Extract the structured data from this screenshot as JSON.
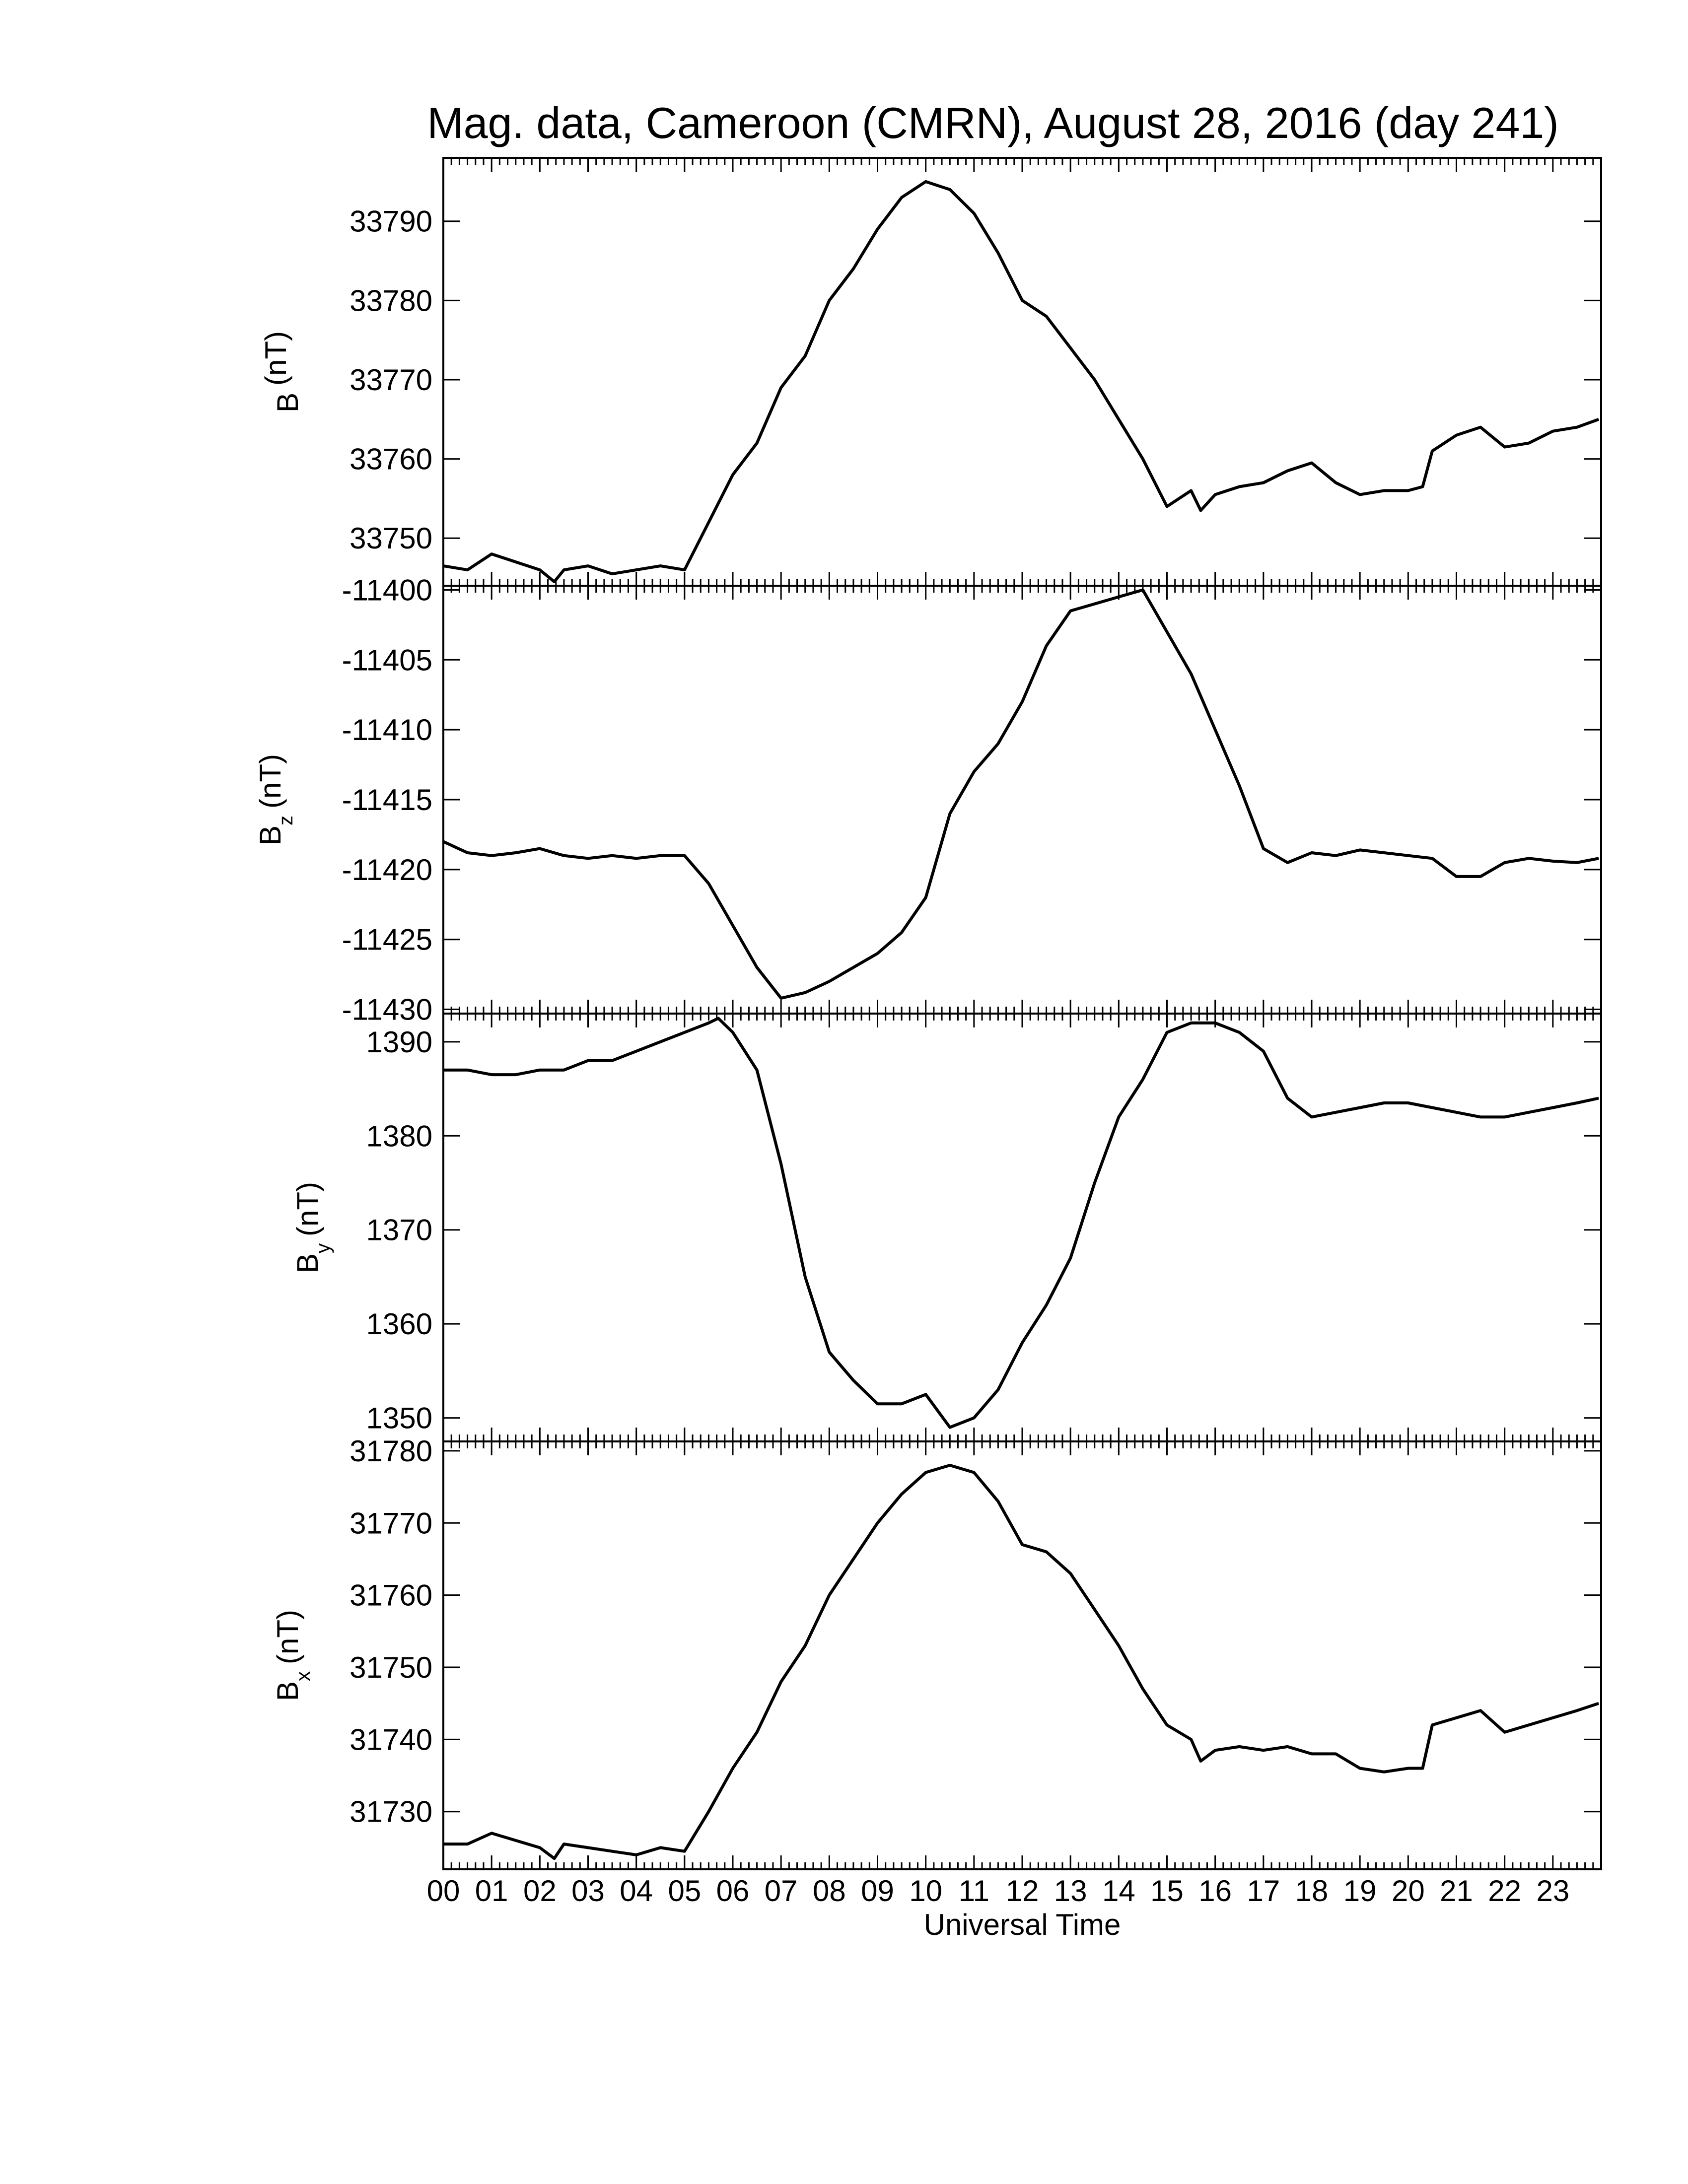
{
  "chart_data": {
    "title": "Mag. data, Cameroon (CMRN), August 28, 2016 (day 241)",
    "type": "line",
    "xlabel": "Universal Time",
    "xlim": [
      0,
      24
    ],
    "x_tick_labels": [
      "00",
      "01",
      "02",
      "03",
      "04",
      "05",
      "06",
      "07",
      "08",
      "09",
      "10",
      "11",
      "12",
      "13",
      "14",
      "15",
      "16",
      "17",
      "18",
      "19",
      "20",
      "21",
      "22",
      "23"
    ],
    "panels": [
      {
        "id": "B",
        "ylabel_main": "B",
        "ylabel_sub": "",
        "ylabel_unit": "(nT)",
        "ylim": [
          33744,
          33798
        ],
        "yticks": [
          33750,
          33760,
          33770,
          33780,
          33790
        ],
        "series": [
          {
            "x": [
              0.0,
              0.5,
              1.0,
              1.5,
              2.0,
              2.3,
              2.5,
              3.0,
              3.5,
              4.0,
              4.5,
              5.0,
              5.5,
              6.0,
              6.5,
              7.0,
              7.5,
              8.0,
              8.5,
              9.0,
              9.5,
              10.0,
              10.5,
              11.0,
              11.5,
              12.0,
              12.5,
              13.0,
              13.5,
              14.0,
              14.5,
              15.0,
              15.5,
              15.7,
              16.0,
              16.5,
              17.0,
              17.5,
              18.0,
              18.5,
              19.0,
              19.5,
              20.0,
              20.3,
              20.5,
              21.0,
              21.5,
              22.0,
              22.5,
              23.0,
              23.5,
              23.95
            ],
            "y": [
              33746.5,
              33746,
              33748,
              33747,
              33746,
              33744.5,
              33746,
              33746.5,
              33745.5,
              33746,
              33746.5,
              33746,
              33752,
              33758,
              33762,
              33769,
              33773,
              33780,
              33784,
              33789,
              33793,
              33795,
              33794,
              33791,
              33786,
              33780,
              33778,
              33774,
              33770,
              33765,
              33760,
              33754,
              33756,
              33753.5,
              33755.5,
              33756.5,
              33757,
              33758.5,
              33759.5,
              33757,
              33755.5,
              33756,
              33756,
              33756.5,
              33761,
              33763,
              33764,
              33761.5,
              33762,
              33763.5,
              33764,
              33765
            ]
          }
        ]
      },
      {
        "id": "Bz",
        "ylabel_main": "B",
        "ylabel_sub": "z",
        "ylabel_unit": "(nT)",
        "ylim": [
          -11430.3,
          -11399.7
        ],
        "yticks": [
          -11400,
          -11405,
          -11410,
          -11415,
          -11420,
          -11425,
          -11430
        ],
        "series": [
          {
            "x": [
              0.0,
              0.5,
              1.0,
              1.5,
              2.0,
              2.5,
              3.0,
              3.5,
              4.0,
              4.5,
              5.0,
              5.5,
              6.0,
              6.5,
              7.0,
              7.5,
              8.0,
              8.5,
              9.0,
              9.5,
              10.0,
              10.5,
              11.0,
              11.5,
              12.0,
              12.5,
              13.0,
              13.5,
              14.0,
              14.5,
              15.0,
              15.5,
              16.0,
              16.5,
              17.0,
              17.5,
              18.0,
              18.5,
              19.0,
              19.5,
              20.0,
              20.5,
              21.0,
              21.5,
              22.0,
              22.5,
              23.0,
              23.5,
              23.95
            ],
            "y": [
              -11418,
              -11418.8,
              -11419,
              -11418.8,
              -11418.5,
              -11419,
              -11419.2,
              -11419,
              -11419.2,
              -11419,
              -11419,
              -11421,
              -11424,
              -11427,
              -11429.2,
              -11428.8,
              -11428,
              -11427,
              -11426,
              -11424.5,
              -11422,
              -11416,
              -11413,
              -11411,
              -11408,
              -11404,
              -11401.5,
              -11401,
              -11400.5,
              -11400,
              -11403,
              -11406,
              -11410,
              -11414,
              -11418.5,
              -11419.5,
              -11418.8,
              -11419,
              -11418.6,
              -11418.8,
              -11419,
              -11419.2,
              -11420.5,
              -11420.5,
              -11419.5,
              -11419.2,
              -11419.4,
              -11419.5,
              -11419.2
            ]
          }
        ]
      },
      {
        "id": "By",
        "ylabel_main": "B",
        "ylabel_sub": "y",
        "ylabel_unit": "(nT)",
        "ylim": [
          1347.5,
          1393
        ],
        "yticks": [
          1350,
          1360,
          1370,
          1380,
          1390
        ],
        "series": [
          {
            "x": [
              0.0,
              0.5,
              1.0,
              1.5,
              2.0,
              2.5,
              3.0,
              3.5,
              4.0,
              4.5,
              5.0,
              5.5,
              5.7,
              6.0,
              6.5,
              7.0,
              7.5,
              8.0,
              8.5,
              9.0,
              9.5,
              10.0,
              10.5,
              11.0,
              11.5,
              12.0,
              12.5,
              13.0,
              13.5,
              14.0,
              14.5,
              15.0,
              15.5,
              16.0,
              16.5,
              17.0,
              17.5,
              18.0,
              18.5,
              19.0,
              19.5,
              20.0,
              20.5,
              21.0,
              21.5,
              22.0,
              22.5,
              23.0,
              23.5,
              23.95
            ],
            "y": [
              1387,
              1387,
              1386.5,
              1386.5,
              1387,
              1387,
              1388,
              1388,
              1389,
              1390,
              1391,
              1392,
              1392.5,
              1391,
              1387,
              1377,
              1365,
              1357,
              1354,
              1351.5,
              1351.5,
              1352.5,
              1349,
              1350,
              1353,
              1358,
              1362,
              1367,
              1375,
              1382,
              1386,
              1391,
              1392,
              1392,
              1391,
              1389,
              1384,
              1382,
              1382.5,
              1383,
              1383.5,
              1383.5,
              1383,
              1382.5,
              1382,
              1382,
              1382.5,
              1383,
              1383.5,
              1384
            ]
          }
        ]
      },
      {
        "id": "Bx",
        "ylabel_main": "B",
        "ylabel_sub": "x",
        "ylabel_unit": "(nT)",
        "ylim": [
          31722,
          31781.3
        ],
        "yticks": [
          31730,
          31740,
          31750,
          31760,
          31770,
          31780
        ],
        "series": [
          {
            "x": [
              0.0,
              0.5,
              1.0,
              1.5,
              2.0,
              2.3,
              2.5,
              3.0,
              3.5,
              4.0,
              4.5,
              5.0,
              5.5,
              6.0,
              6.5,
              7.0,
              7.5,
              8.0,
              8.5,
              9.0,
              9.5,
              10.0,
              10.5,
              11.0,
              11.5,
              12.0,
              12.5,
              13.0,
              13.5,
              14.0,
              14.5,
              15.0,
              15.5,
              15.7,
              16.0,
              16.5,
              17.0,
              17.5,
              18.0,
              18.5,
              19.0,
              19.5,
              20.0,
              20.3,
              20.5,
              21.0,
              21.5,
              22.0,
              22.5,
              23.0,
              23.5,
              23.95
            ],
            "y": [
              31725.5,
              31725.5,
              31727,
              31726,
              31725,
              31723.5,
              31725.5,
              31725,
              31724.5,
              31724,
              31725,
              31724.5,
              31730,
              31736,
              31741,
              31748,
              31753,
              31760,
              31765,
              31770,
              31774,
              31777,
              31778,
              31777,
              31773,
              31767,
              31766,
              31763,
              31758,
              31753,
              31747,
              31742,
              31740,
              31737,
              31738.5,
              31739,
              31738.5,
              31739,
              31738,
              31738,
              31736,
              31735.5,
              31736,
              31736,
              31742,
              31743,
              31744,
              31741,
              31742,
              31743,
              31744,
              31745
            ]
          }
        ]
      }
    ]
  }
}
